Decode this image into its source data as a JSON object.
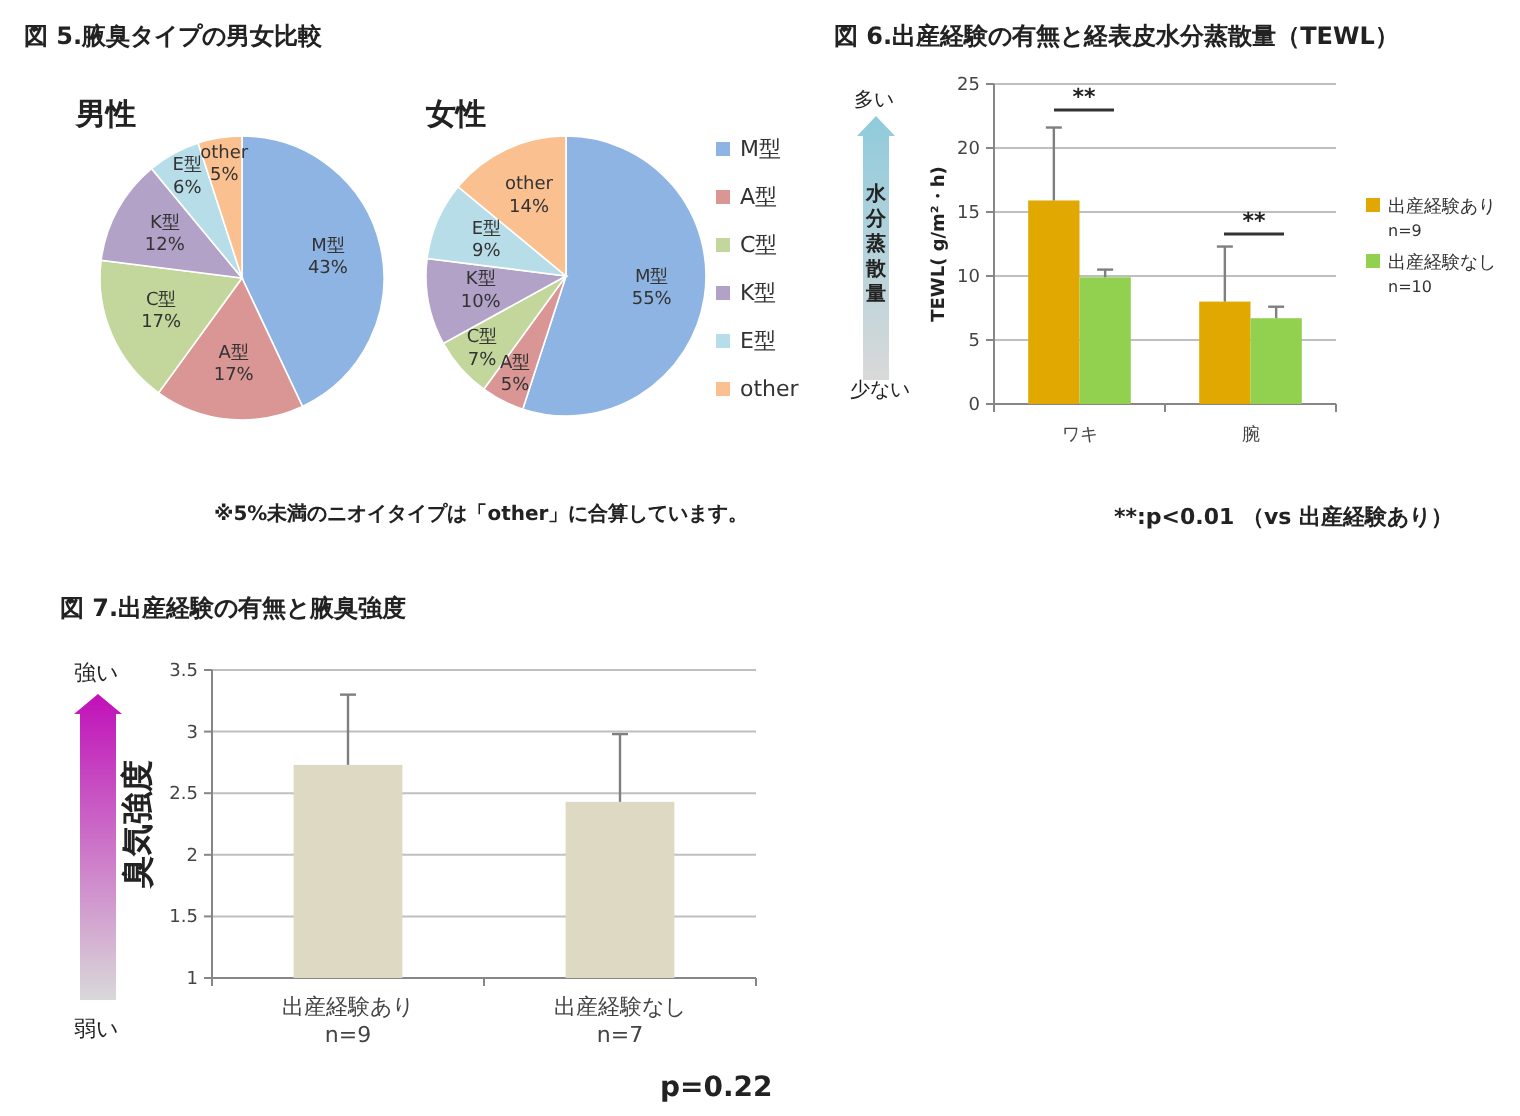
{
  "chart_data": [
    {
      "type": "pie",
      "title": "図 5.腋臭タイプの男女比較",
      "subtitle": "男性",
      "categories": [
        "M型",
        "A型",
        "C型",
        "K型",
        "E型",
        "other"
      ],
      "values": [
        43,
        17,
        17,
        12,
        6,
        5
      ],
      "value_labels": [
        "43%",
        "17%",
        "17%",
        "12%",
        "6%",
        "5%"
      ],
      "colors": [
        "#8eb4e3",
        "#d99694",
        "#c3d69b",
        "#b3a2c7",
        "#b7dee8",
        "#fac090"
      ]
    },
    {
      "type": "pie",
      "title": "女性",
      "categories": [
        "M型",
        "A型",
        "C型",
        "K型",
        "E型",
        "other"
      ],
      "values": [
        55,
        5,
        7,
        10,
        9,
        14
      ],
      "value_labels": [
        "55%",
        "5%",
        "7%",
        "10%",
        "9%",
        "14%"
      ],
      "colors": [
        "#8eb4e3",
        "#d99694",
        "#c3d69b",
        "#b3a2c7",
        "#b7dee8",
        "#fac090"
      ],
      "legend": "right",
      "annotations": [
        "※5%未満のニオイタイプは「other」に合算しています。"
      ]
    },
    {
      "type": "bar",
      "title": "図 6.出産経験の有無と経表皮水分蒸散量（TEWL）",
      "ylabel": "TEWL( g/m²・h)",
      "categories": [
        "ワキ",
        "腕"
      ],
      "series": [
        {
          "name": "出産経験あり\nn=9",
          "color": "#e0a800",
          "values": [
            15.9,
            8.0
          ],
          "errors": [
            [
              15.9,
              21.6
            ],
            [
              8.0,
              12.3
            ]
          ]
        },
        {
          "name": "出産経験なし\nn=10",
          "color": "#92d050",
          "values": [
            9.9,
            6.7
          ],
          "errors": [
            [
              9.9,
              10.5
            ],
            [
              6.7,
              7.6
            ]
          ]
        }
      ],
      "ylim": [
        0,
        25
      ],
      "yticks": [
        0,
        5,
        10,
        15,
        20,
        25
      ],
      "grid": "y",
      "legend": "right",
      "annotations": [
        "多い",
        "水分蒸散量",
        "少ない",
        "**",
        "**",
        "**:p<0.01 （vs 出産経験あり）"
      ]
    },
    {
      "type": "bar",
      "title": "図 7.出産経験の有無と腋臭強度",
      "ylabel": "臭気強度",
      "categories": [
        "出産経験あり\nn=9",
        "出産経験なし\nn=7"
      ],
      "series": [
        {
          "color": "#ddd9c3",
          "values": [
            2.73,
            2.43
          ],
          "errors": [
            [
              2.73,
              3.3
            ],
            [
              2.43,
              2.98
            ]
          ]
        }
      ],
      "ylim": [
        1,
        3.5
      ],
      "yticks": [
        1,
        1.5,
        2,
        2.5,
        3,
        3.5
      ],
      "grid": "y",
      "annotations": [
        "強い",
        "弱い",
        "p=0.22"
      ]
    }
  ]
}
